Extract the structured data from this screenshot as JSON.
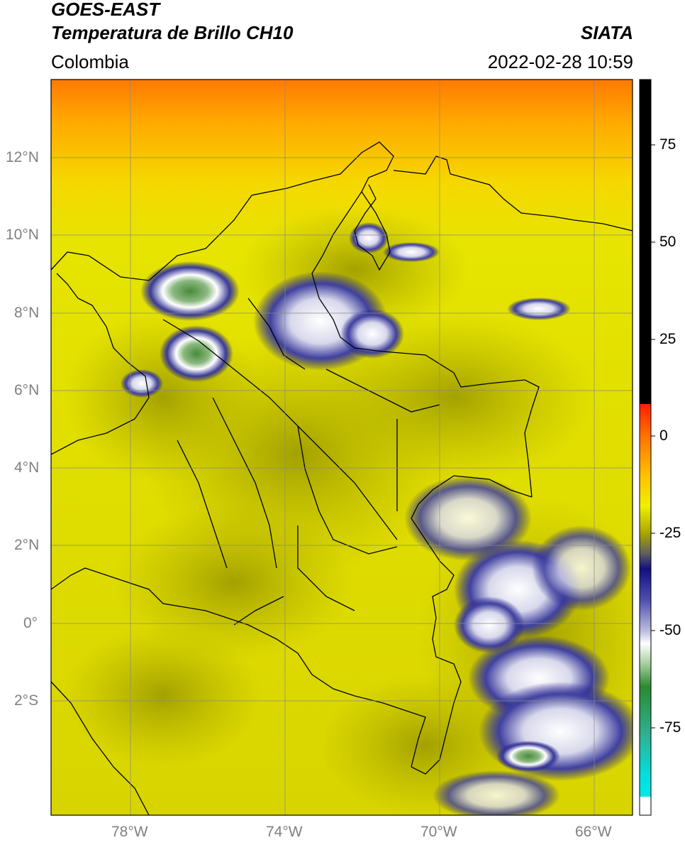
{
  "header": {
    "satellite": "GOES-EAST",
    "product": "Temperatura de Brillo CH10",
    "region": "Colombia",
    "agency": "SIATA",
    "timestamp": "2022-02-28 10:59"
  },
  "map": {
    "lon_range": [
      -80.0,
      -65.0
    ],
    "lat_range": [
      -5.0,
      14.0
    ],
    "latitude_labels": [
      {
        "value": 12,
        "label": "12°N"
      },
      {
        "value": 10,
        "label": "10°N"
      },
      {
        "value": 8,
        "label": "8°N"
      },
      {
        "value": 6,
        "label": "6°N"
      },
      {
        "value": 4,
        "label": "4°N"
      },
      {
        "value": 2,
        "label": "2°N"
      },
      {
        "value": 0,
        "label": "0°"
      },
      {
        "value": -2,
        "label": "2°S"
      }
    ],
    "longitude_labels": [
      {
        "value": -78,
        "label": "78°W"
      },
      {
        "value": -74,
        "label": "74°W"
      },
      {
        "value": -70,
        "label": "70°W"
      },
      {
        "value": -66,
        "label": "66°W"
      }
    ],
    "grid": true,
    "colors": {
      "background_warm": "#e8e600",
      "olive": "#b3b000",
      "orange": "#ff8c00",
      "cloud_blue": "#1a1a8c",
      "cloud_white": "#ffffff",
      "cloud_green": "#4a8a3a",
      "border": "#000000"
    }
  },
  "colorbar": {
    "range": [
      -95,
      90
    ],
    "ticks": [
      {
        "value": 75,
        "label": "75"
      },
      {
        "value": 50,
        "label": "50"
      },
      {
        "value": 25,
        "label": "25"
      },
      {
        "value": 0,
        "label": "0"
      },
      {
        "value": -25,
        "label": "-25"
      },
      {
        "value": -50,
        "label": "-50"
      },
      {
        "value": -75,
        "label": "-75"
      }
    ]
  }
}
